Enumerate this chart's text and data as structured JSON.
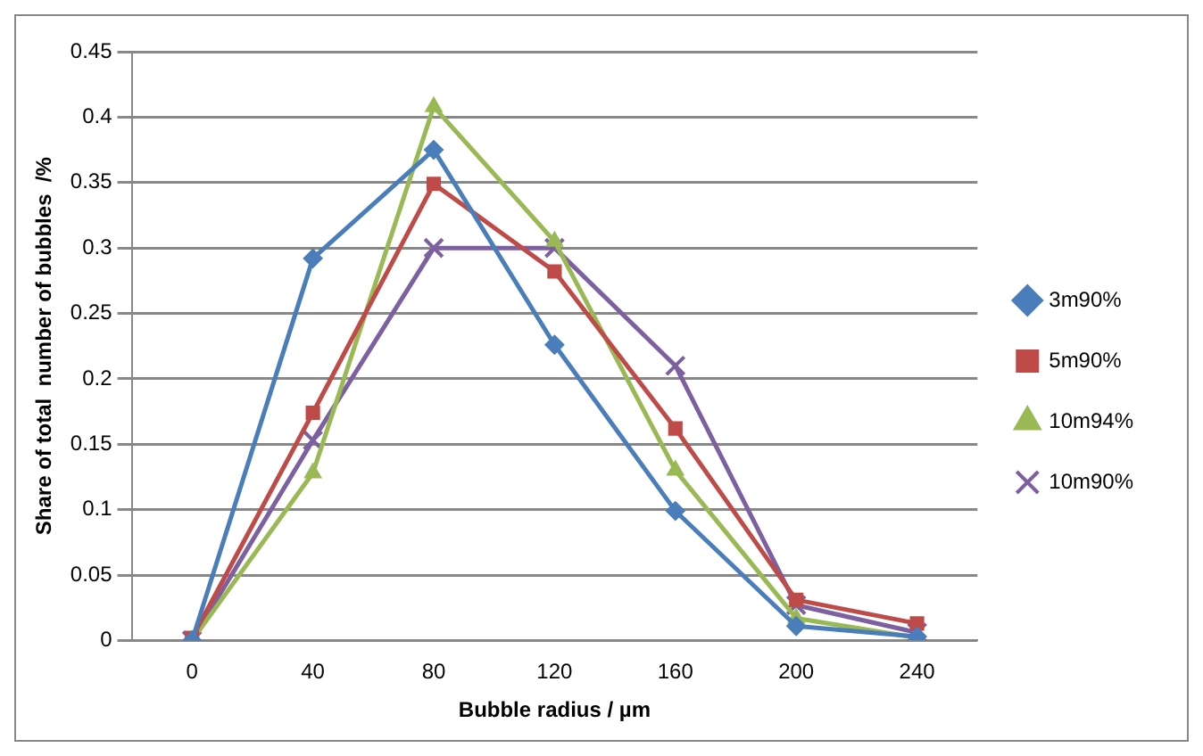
{
  "chart_data": {
    "type": "line",
    "xlabel": "Bubble radius / µm",
    "ylabel": "Share of total  number of bubbles  /%",
    "categories": [
      "0",
      "40",
      "80",
      "120",
      "160",
      "200",
      "240"
    ],
    "series": [
      {
        "name": "3m90%",
        "color": "#4a7ebb",
        "marker": "diamond",
        "values": [
          0,
          0.292,
          0.375,
          0.226,
          0.099,
          0.011,
          0.003
        ]
      },
      {
        "name": "5m90%",
        "color": "#be4b48",
        "marker": "square",
        "values": [
          0.002,
          0.174,
          0.349,
          0.282,
          0.162,
          0.031,
          0.013
        ]
      },
      {
        "name": "10m94%",
        "color": "#98b954",
        "marker": "triangle",
        "values": [
          0,
          0.128,
          0.408,
          0.305,
          0.13,
          0.017,
          0.002
        ]
      },
      {
        "name": "10m90%",
        "color": "#7d60a0",
        "marker": "cross",
        "values": [
          0,
          0.153,
          0.3,
          0.3,
          0.21,
          0.027,
          0.006
        ]
      }
    ],
    "ylim": [
      0,
      0.45
    ],
    "yticks": [
      0,
      0.05,
      0.1,
      0.15,
      0.2,
      0.25,
      0.3,
      0.35,
      0.4,
      0.45
    ],
    "grid": "y",
    "legend": "right",
    "line_style": "solid"
  }
}
